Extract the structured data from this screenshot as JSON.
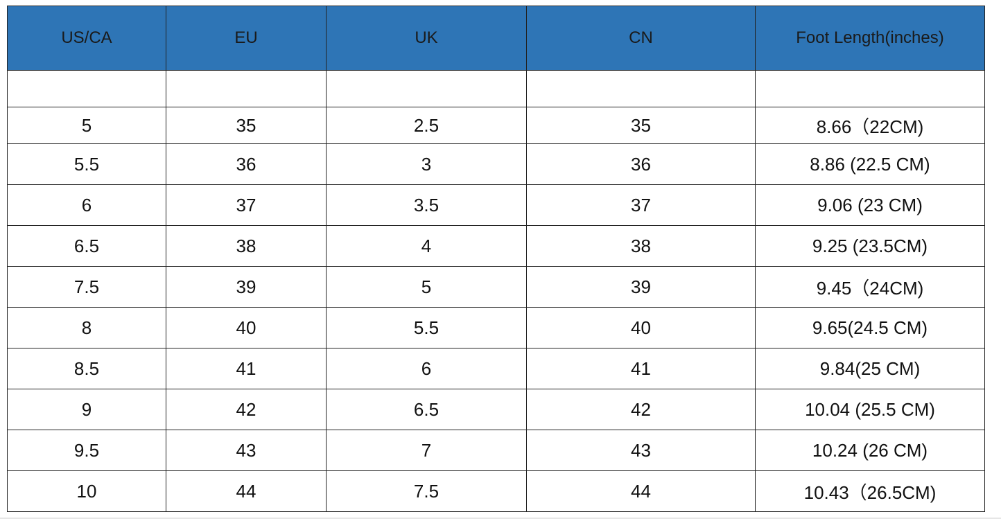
{
  "table": {
    "header": [
      "US/CA",
      "EU",
      "UK",
      "CN",
      "Foot Length(inches)"
    ],
    "rows": [
      [
        "5",
        "35",
        "2.5",
        "35",
        "8.66（22CM)"
      ],
      [
        "5.5",
        "36",
        "3",
        "36",
        "8.86 (22.5 CM)"
      ],
      [
        "6",
        "37",
        "3.5",
        "37",
        "9.06 (23 CM)"
      ],
      [
        "6.5",
        "38",
        "4",
        "38",
        "9.25 (23.5CM)"
      ],
      [
        "7.5",
        "39",
        "5",
        "39",
        "9.45（24CM)"
      ],
      [
        "8",
        "40",
        "5.5",
        "40",
        "9.65(24.5 CM)"
      ],
      [
        "8.5",
        "41",
        "6",
        "41",
        "9.84(25 CM)"
      ],
      [
        "9",
        "42",
        "6.5",
        "42",
        "10.04 (25.5 CM)"
      ],
      [
        "9.5",
        "43",
        "7",
        "43",
        "10.24 (26 CM)"
      ],
      [
        "10",
        "44",
        "7.5",
        "44",
        "10.43（26.5CM)"
      ]
    ]
  }
}
